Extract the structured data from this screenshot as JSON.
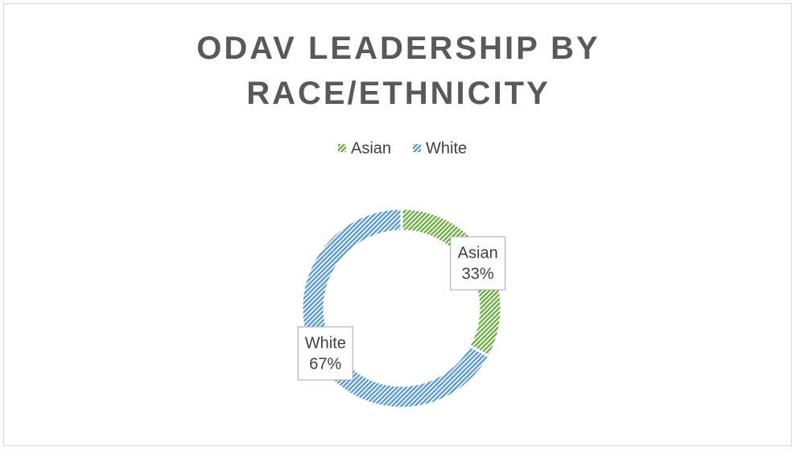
{
  "chart_data": {
    "type": "donut",
    "title": "ODAV LEADERSHIP BY RACE/ETHNICITY",
    "categories": [
      "Asian",
      "White"
    ],
    "values": [
      33,
      67
    ],
    "value_labels": [
      "33%",
      "67%"
    ],
    "colors": [
      "#70ad47",
      "#5b9bd5"
    ],
    "legend": "top"
  }
}
